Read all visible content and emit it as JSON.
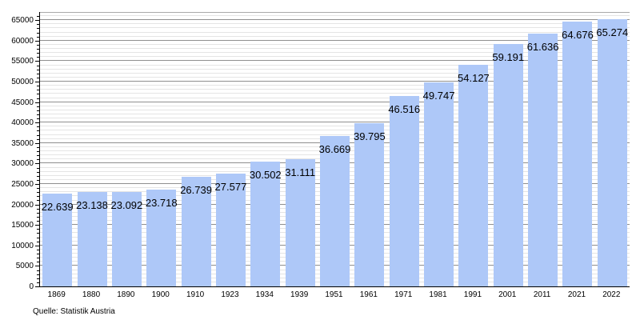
{
  "chart_data": {
    "type": "bar",
    "title": "",
    "xlabel": "",
    "ylabel": "",
    "categories": [
      "1869",
      "1880",
      "1890",
      "1900",
      "1910",
      "1923",
      "1934",
      "1939",
      "1951",
      "1961",
      "1971",
      "1981",
      "1991",
      "2001",
      "2011",
      "2021",
      "2022"
    ],
    "values": [
      22639,
      23138,
      23092,
      23718,
      26739,
      27577,
      30502,
      31111,
      36669,
      39795,
      46516,
      49747,
      54127,
      59191,
      61636,
      64676,
      65274
    ],
    "value_labels": [
      "22.639",
      "23.138",
      "23.092",
      "23.718",
      "26.739",
      "27.577",
      "30.502",
      "31.111",
      "36.669",
      "39.795",
      "46.516",
      "49.747",
      "54.127",
      "59.191",
      "61.636",
      "64.676",
      "65.274"
    ],
    "y_tick_values": [
      0,
      5000,
      10000,
      15000,
      20000,
      25000,
      30000,
      35000,
      40000,
      45000,
      50000,
      55000,
      60000,
      65000
    ],
    "y_tick_labels": [
      "0",
      "5000",
      "10000",
      "15000",
      "20000",
      "25000",
      "30000",
      "35000",
      "40000",
      "45000",
      "50000",
      "55000",
      "60000",
      "65000"
    ],
    "ylim": [
      0,
      67000
    ],
    "minor_grid_step": 1000,
    "grid": true,
    "legend": false,
    "bar_color": "#aec8f8",
    "source": "Quelle: Statistik Austria"
  },
  "colors": {
    "bar": "#aec8f8",
    "major_grid": "#8f8f8f",
    "minor_grid": "#e4e4e4",
    "frame": "#aaaaaa",
    "axis": "#000000",
    "text": "#000000",
    "background": "#ffffff"
  }
}
